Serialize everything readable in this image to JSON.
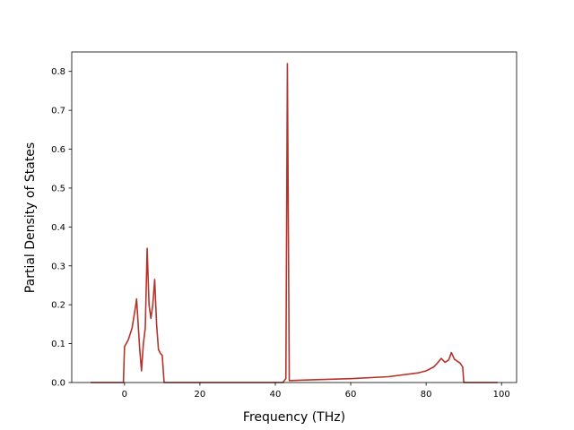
{
  "chart_data": {
    "type": "line",
    "title": "",
    "xlabel": "Frequency (THz)",
    "ylabel": "Partial Density of States",
    "xlim": [
      -14,
      104
    ],
    "ylim": [
      0,
      0.85
    ],
    "xticks": [
      0,
      20,
      40,
      60,
      80,
      100
    ],
    "xtick_labels": [
      "0",
      "20",
      "40",
      "60",
      "80",
      "100"
    ],
    "yticks": [
      0.0,
      0.1,
      0.2,
      0.3,
      0.4,
      0.5,
      0.6,
      0.7,
      0.8
    ],
    "ytick_labels": [
      "0.0",
      "0.1",
      "0.2",
      "0.3",
      "0.4",
      "0.5",
      "0.6",
      "0.7",
      "0.8"
    ],
    "grid": false,
    "legend": "none",
    "series": [
      {
        "color": "#b5332a",
        "x": [
          -9,
          -0.3,
          0,
          1,
          2,
          3,
          3.2,
          4,
          4.5,
          5,
          5.5,
          6,
          6.5,
          7,
          7.5,
          8,
          8.5,
          9,
          9.5,
          10,
          10.5,
          42,
          42.8,
          43.2,
          43.7,
          44,
          50,
          60,
          70,
          78,
          80,
          82,
          83,
          84,
          85,
          86,
          86.7,
          87.5,
          89,
          89.7,
          90,
          99
        ],
        "y": [
          0,
          0,
          0.092,
          0.11,
          0.14,
          0.2,
          0.215,
          0.09,
          0.03,
          0.1,
          0.14,
          0.345,
          0.2,
          0.165,
          0.2,
          0.265,
          0.15,
          0.085,
          0.075,
          0.07,
          0.0,
          0.0,
          0.01,
          0.82,
          0.005,
          0.005,
          0.007,
          0.01,
          0.015,
          0.025,
          0.03,
          0.04,
          0.05,
          0.062,
          0.052,
          0.058,
          0.077,
          0.06,
          0.05,
          0.04,
          0.0,
          0.0
        ]
      }
    ]
  }
}
